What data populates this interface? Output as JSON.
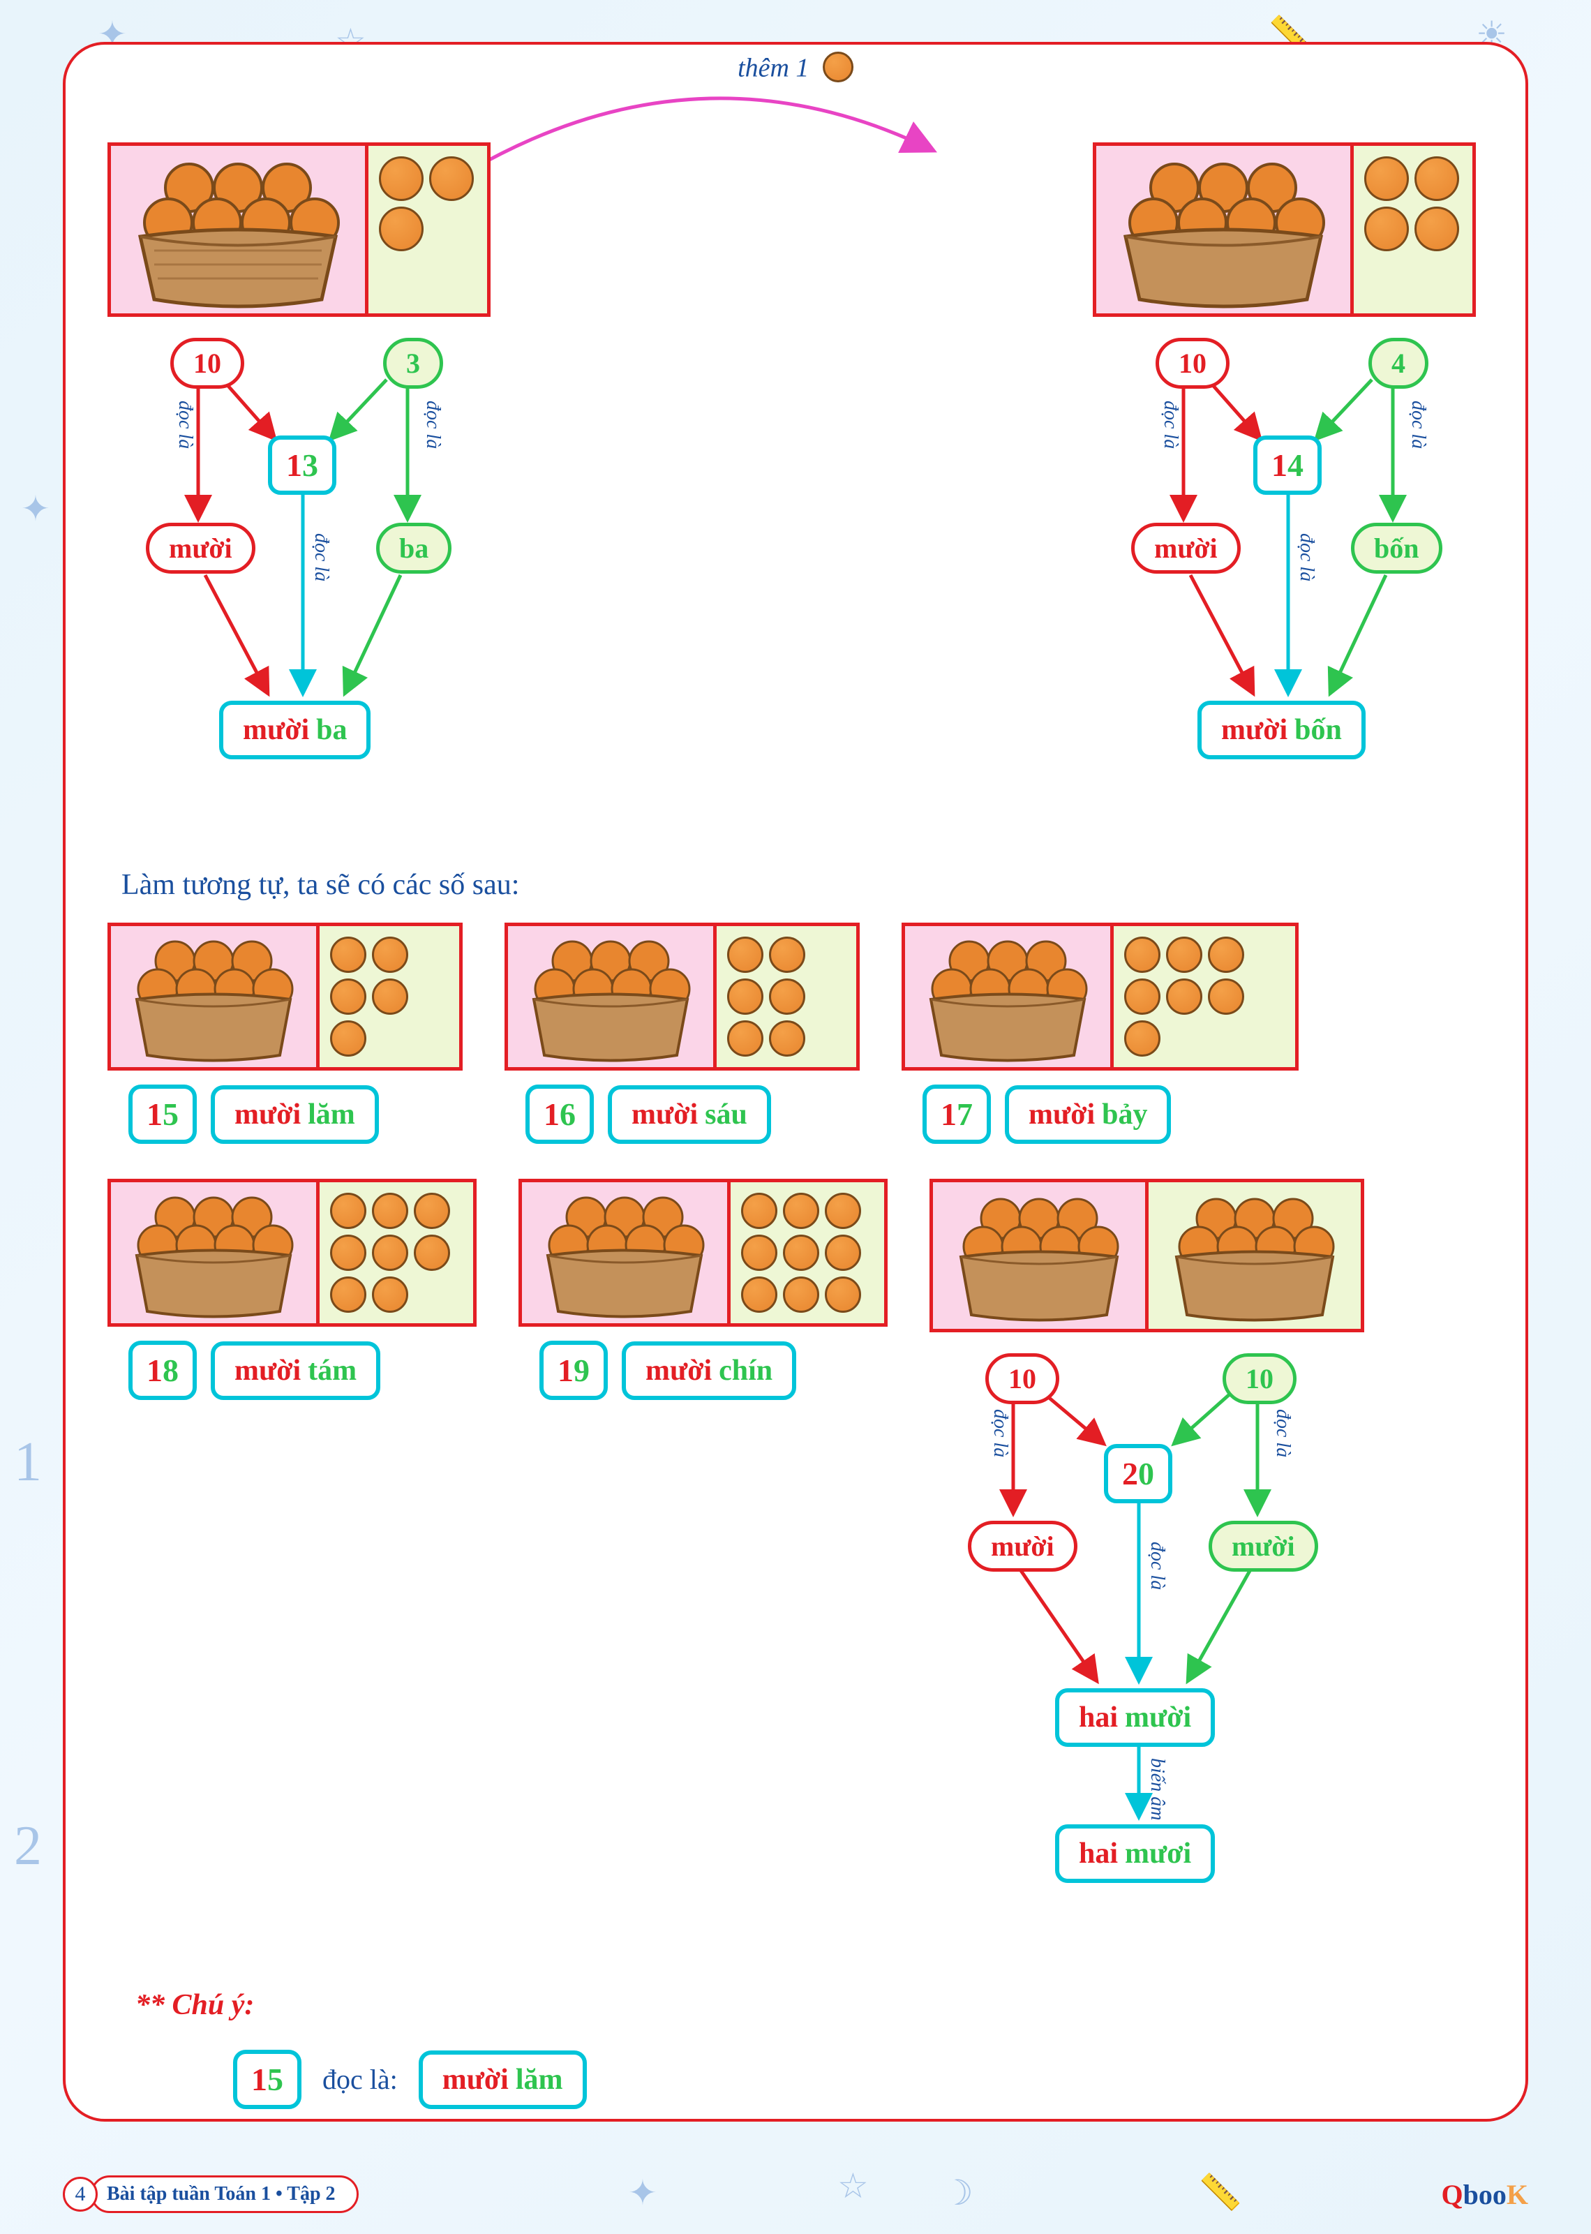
{
  "top": {
    "label": "thêm 1"
  },
  "diagram13": {
    "tens": "10",
    "units": "3",
    "combined_d1": "1",
    "combined_d2": "3",
    "word_tens": "mười",
    "word_units": "ba",
    "full_w1": "mười",
    "full_w2": "ba",
    "edge": "đọc là"
  },
  "diagram14": {
    "tens": "10",
    "units": "4",
    "combined_d1": "1",
    "combined_d2": "4",
    "word_tens": "mười",
    "word_units": "bốn",
    "full_w1": "mười",
    "full_w2": "bốn",
    "edge": "đọc là"
  },
  "section_text": "Làm tương tự, ta sẽ có các số sau:",
  "items": {
    "n15": {
      "d1": "1",
      "d2": "5",
      "w1": "mười",
      "w2": "lăm",
      "extras": 5
    },
    "n16": {
      "d1": "1",
      "d2": "6",
      "w1": "mười",
      "w2": "sáu",
      "extras": 6
    },
    "n17": {
      "d1": "1",
      "d2": "7",
      "w1": "mười",
      "w2": "bảy",
      "extras": 7
    },
    "n18": {
      "d1": "1",
      "d2": "8",
      "w1": "mười",
      "w2": "tám",
      "extras": 8
    },
    "n19": {
      "d1": "1",
      "d2": "9",
      "w1": "mười",
      "w2": "chín",
      "extras": 9
    }
  },
  "diagram20": {
    "tens": "10",
    "units": "10",
    "combined_d1": "2",
    "combined_d2": "0",
    "word_tens": "mười",
    "word_units": "mười",
    "mid_w1": "hai",
    "mid_w2": "mười",
    "full_w1": "hai",
    "full_w2": "mươi",
    "edge": "đọc là",
    "edge2": "biến âm"
  },
  "note": {
    "title": "** Chú ý:",
    "num_d1": "1",
    "num_d2": "5",
    "read": "đọc là:",
    "w1": "mười",
    "w2": "lăm"
  },
  "footer": {
    "page": "4",
    "title": "Bài tập tuần Toán 1 • Tập 2",
    "logo_q": "Q",
    "logo_b": "boo",
    "logo_k": "K"
  },
  "colors": {
    "red": "#e31e24",
    "green": "#2ec44f",
    "cyan": "#00c4d9",
    "blue": "#1a4f9e",
    "magenta": "#e844c4",
    "orange_fill": "#e8862f",
    "orange_hl": "#f4a048",
    "basket_brown": "#c4915a",
    "basket_dark": "#8a5a2a",
    "pink": "#fbd5e8",
    "lime": "#eef7d5"
  }
}
